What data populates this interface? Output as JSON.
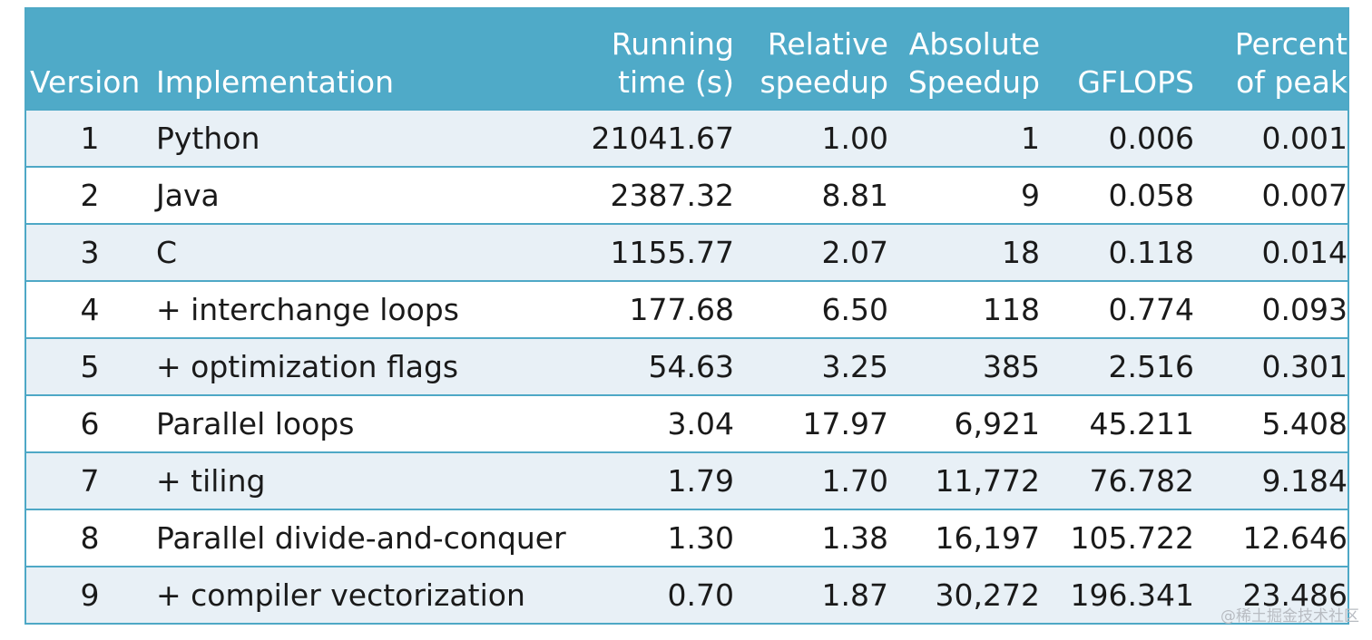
{
  "chart_data": {
    "type": "table",
    "columns": [
      "Version",
      "Implementation",
      "Running time (s)",
      "Relative speedup",
      "Absolute Speedup",
      "GFLOPS",
      "Percent of peak"
    ],
    "header": {
      "version": "Version",
      "implementation": "Implementation",
      "running_time": [
        "Running",
        "time (s)"
      ],
      "relative_speedup": [
        "Relative",
        "speedup"
      ],
      "absolute_speedup": [
        "Absolute",
        "Speedup"
      ],
      "gflops": "GFLOPS",
      "percent_of_peak": [
        "Percent",
        "of peak"
      ]
    },
    "rows": [
      {
        "version": "1",
        "implementation": "Python",
        "running_time": "21041.67",
        "relative_speedup": "1.00",
        "absolute_speedup": "1",
        "gflops": "0.006",
        "percent_of_peak": "0.001"
      },
      {
        "version": "2",
        "implementation": "Java",
        "running_time": "2387.32",
        "relative_speedup": "8.81",
        "absolute_speedup": "9",
        "gflops": "0.058",
        "percent_of_peak": "0.007"
      },
      {
        "version": "3",
        "implementation": "C",
        "running_time": "1155.77",
        "relative_speedup": "2.07",
        "absolute_speedup": "18",
        "gflops": "0.118",
        "percent_of_peak": "0.014"
      },
      {
        "version": "4",
        "implementation": "+ interchange loops",
        "running_time": "177.68",
        "relative_speedup": "6.50",
        "absolute_speedup": "118",
        "gflops": "0.774",
        "percent_of_peak": "0.093"
      },
      {
        "version": "5",
        "implementation": "+ optimization flags",
        "running_time": "54.63",
        "relative_speedup": "3.25",
        "absolute_speedup": "385",
        "gflops": "2.516",
        "percent_of_peak": "0.301"
      },
      {
        "version": "6",
        "implementation": "Parallel loops",
        "running_time": "3.04",
        "relative_speedup": "17.97",
        "absolute_speedup": "6,921",
        "gflops": "45.211",
        "percent_of_peak": "5.408"
      },
      {
        "version": "7",
        "implementation": "+ tiling",
        "running_time": "1.79",
        "relative_speedup": "1.70",
        "absolute_speedup": "11,772",
        "gflops": "76.782",
        "percent_of_peak": "9.184"
      },
      {
        "version": "8",
        "implementation": "Parallel divide-and-conquer",
        "running_time": "1.30",
        "relative_speedup": "1.38",
        "absolute_speedup": "16,197",
        "gflops": "105.722",
        "percent_of_peak": "12.646"
      },
      {
        "version": "9",
        "implementation": "+ compiler vectorization",
        "running_time": "0.70",
        "relative_speedup": "1.87",
        "absolute_speedup": "30,272",
        "gflops": "196.341",
        "percent_of_peak": "23.486"
      }
    ],
    "colors": {
      "header_bg": "#4faac8",
      "header_text": "#ffffff",
      "row_alt_bg": "#e8f0f6",
      "row_plain_bg": "#ffffff",
      "border": "#4ea8c6"
    }
  },
  "watermark": "@稀土掘金技术社区"
}
